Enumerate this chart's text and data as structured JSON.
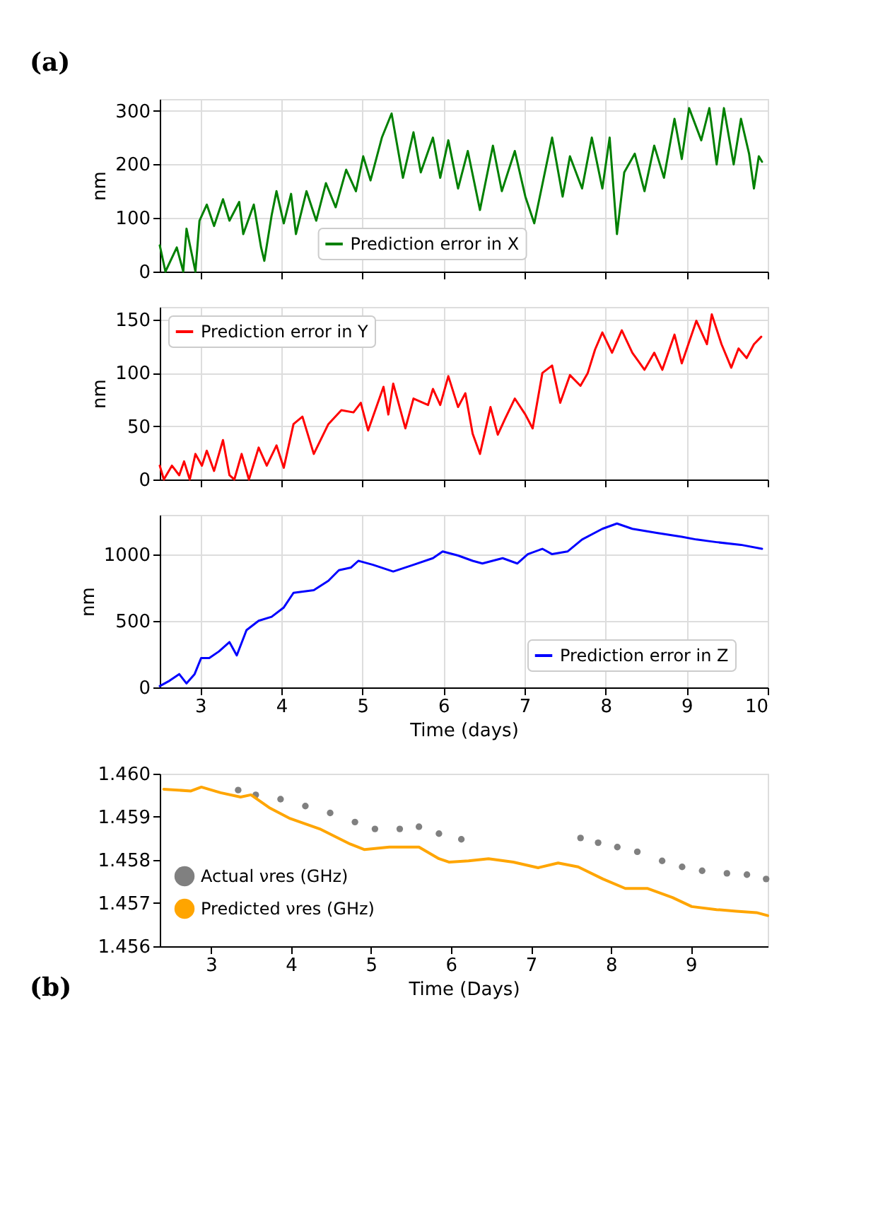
{
  "chart_data": [
    {
      "type": "line",
      "annotations": [
        "(a)"
      ],
      "ylabel": "nm",
      "xlim": [
        2.5,
        10
      ],
      "xticks": [
        3,
        4,
        5,
        6,
        7,
        8,
        9,
        10
      ],
      "ylim": [
        0,
        322
      ],
      "yticks": [
        0,
        100,
        200,
        300
      ],
      "tick_labels": "y",
      "grid": true,
      "legend": "bottom",
      "x": [
        2.5,
        2.57,
        2.71,
        2.79,
        2.83,
        2.94,
        2.99,
        3.08,
        3.17,
        3.28,
        3.36,
        3.48,
        3.53,
        3.66,
        3.75,
        3.79,
        3.88,
        3.94,
        4.03,
        4.12,
        4.18,
        4.31,
        4.43,
        4.55,
        4.67,
        4.8,
        4.92,
        5.01,
        5.1,
        5.24,
        5.36,
        5.5,
        5.63,
        5.72,
        5.87,
        5.96,
        6.06,
        6.18,
        6.3,
        6.45,
        6.61,
        6.72,
        6.88,
        7.01,
        7.12,
        7.34,
        7.47,
        7.56,
        7.71,
        7.83,
        7.96,
        8.05,
        8.14,
        8.23,
        8.36,
        8.48,
        8.6,
        8.72,
        8.85,
        8.94,
        9.03,
        9.18,
        9.28,
        9.37,
        9.46,
        9.58,
        9.67,
        9.77,
        9.83,
        9.89,
        9.93
      ],
      "series": [
        {
          "name": "Prediction error in X",
          "color": "#008000",
          "values": [
            49,
            0,
            45,
            0,
            80,
            0,
            95,
            125,
            85,
            135,
            95,
            130,
            70,
            125,
            45,
            20,
            105,
            150,
            90,
            145,
            70,
            150,
            95,
            165,
            120,
            190,
            150,
            215,
            170,
            250,
            295,
            175,
            260,
            185,
            250,
            175,
            245,
            155,
            225,
            115,
            235,
            150,
            225,
            140,
            90,
            250,
            140,
            215,
            155,
            250,
            155,
            250,
            70,
            185,
            220,
            150,
            235,
            175,
            285,
            210,
            305,
            245,
            305,
            200,
            305,
            200,
            285,
            220,
            155,
            215,
            205
          ]
        }
      ]
    },
    {
      "type": "line",
      "ylabel": "nm",
      "xlim": [
        2.5,
        10
      ],
      "xticks": [
        3,
        4,
        5,
        6,
        7,
        8,
        9,
        10
      ],
      "ylim": [
        0,
        162
      ],
      "yticks": [
        0,
        50,
        100,
        150
      ],
      "tick_labels": "y",
      "grid": true,
      "legend": "top left",
      "x": [
        2.5,
        2.55,
        2.65,
        2.74,
        2.8,
        2.87,
        2.94,
        3.02,
        3.08,
        3.17,
        3.28,
        3.36,
        3.42,
        3.51,
        3.6,
        3.72,
        3.82,
        3.94,
        4.03,
        4.15,
        4.26,
        4.4,
        4.58,
        4.74,
        4.89,
        4.98,
        5.07,
        5.26,
        5.32,
        5.38,
        5.53,
        5.63,
        5.81,
        5.87,
        5.96,
        6.06,
        6.18,
        6.27,
        6.36,
        6.45,
        6.58,
        6.67,
        6.76,
        6.88,
        7.01,
        7.1,
        7.22,
        7.34,
        7.44,
        7.56,
        7.69,
        7.78,
        7.87,
        7.96,
        8.08,
        8.2,
        8.33,
        8.48,
        8.6,
        8.7,
        8.85,
        8.94,
        9.12,
        9.25,
        9.31,
        9.43,
        9.55,
        9.64,
        9.74,
        9.83,
        9.92
      ],
      "series": [
        {
          "name": "Prediction error in Y",
          "color": "#ff0000",
          "values": [
            13,
            0,
            13,
            4,
            17,
            0,
            24,
            13,
            27,
            8,
            37,
            4,
            0,
            24,
            0,
            30,
            13,
            32,
            11,
            52,
            59,
            24,
            52,
            65,
            63,
            72,
            46,
            87,
            61,
            90,
            48,
            76,
            70,
            85,
            70,
            97,
            68,
            81,
            43,
            24,
            68,
            42,
            57,
            76,
            61,
            48,
            100,
            107,
            72,
            98,
            88,
            100,
            122,
            138,
            119,
            140,
            119,
            103,
            119,
            103,
            136,
            109,
            149,
            127,
            155,
            127,
            105,
            123,
            114,
            127,
            134
          ]
        }
      ]
    },
    {
      "type": "line",
      "ylabel": "nm",
      "xlabel": "Time (days)",
      "xlim": [
        2.5,
        10
      ],
      "xticks": [
        3,
        4,
        5,
        6,
        7,
        8,
        9,
        10
      ],
      "ylim": [
        0,
        1295
      ],
      "yticks": [
        0,
        500,
        1000
      ],
      "grid": true,
      "legend": "bottom right",
      "x": [
        2.5,
        2.62,
        2.74,
        2.83,
        2.93,
        3.01,
        3.11,
        3.23,
        3.36,
        3.45,
        3.57,
        3.72,
        3.88,
        4.03,
        4.15,
        4.4,
        4.58,
        4.71,
        4.86,
        4.95,
        5.13,
        5.38,
        5.63,
        5.87,
        5.99,
        6.18,
        6.36,
        6.48,
        6.73,
        6.91,
        7.04,
        7.22,
        7.34,
        7.53,
        7.71,
        7.96,
        8.14,
        8.33,
        8.63,
        8.94,
        9.12,
        9.37,
        9.67,
        9.93
      ],
      "series": [
        {
          "name": "Prediction error in Z",
          "color": "#0000ff",
          "values": [
            10,
            50,
            100,
            30,
            100,
            220,
            220,
            270,
            340,
            240,
            430,
            500,
            530,
            600,
            710,
            730,
            800,
            880,
            900,
            950,
            920,
            870,
            920,
            970,
            1020,
            990,
            950,
            930,
            970,
            930,
            1000,
            1040,
            1000,
            1020,
            1110,
            1190,
            1230,
            1190,
            1160,
            1130,
            1110,
            1090,
            1070,
            1040
          ]
        }
      ]
    },
    {
      "type": "line",
      "annotations": [
        "(b)"
      ],
      "xlabel": "Time (Days)",
      "xlim": [
        2.36,
        9.96
      ],
      "xticks": [
        3,
        4,
        5,
        6,
        7,
        8,
        9
      ],
      "ylim": [
        1.456,
        1.46
      ],
      "yticks": [
        {
          "value": 1.456,
          "label": "1.456"
        },
        {
          "value": 1.457,
          "label": "1.457"
        },
        {
          "value": 1.458,
          "label": "1.458"
        },
        {
          "value": 1.459,
          "label": "1.459"
        },
        {
          "value": 1.46,
          "label": "1.460"
        }
      ],
      "grid": false,
      "legend": "left",
      "series": [
        {
          "name": "Actual νres (GHz)",
          "type": "scatter",
          "color": "#808080",
          "x": [
            3.34,
            3.56,
            3.87,
            4.18,
            4.49,
            4.8,
            5.05,
            5.36,
            5.6,
            5.85,
            6.13,
            7.62,
            7.84,
            8.08,
            8.33,
            8.64,
            8.89,
            9.14,
            9.45,
            9.7,
            9.94
          ],
          "values": [
            1.45962,
            1.45951,
            1.45941,
            1.45925,
            1.45909,
            1.45888,
            1.45872,
            1.45872,
            1.45877,
            1.45861,
            1.45848,
            1.45851,
            1.4584,
            1.4583,
            1.45819,
            1.45798,
            1.45784,
            1.45775,
            1.45769,
            1.45766,
            1.45756
          ]
        },
        {
          "name": "Predicted νres (GHz)",
          "type": "line",
          "color": "#ffa500",
          "x": [
            2.41,
            2.75,
            2.88,
            3.12,
            3.37,
            3.5,
            3.74,
            3.99,
            4.36,
            4.74,
            4.92,
            5.23,
            5.6,
            5.85,
            5.98,
            6.22,
            6.47,
            6.78,
            7.09,
            7.34,
            7.59,
            7.9,
            8.18,
            8.46,
            8.77,
            9.01,
            9.32,
            9.57,
            9.82,
            9.96
          ],
          "values": [
            1.45964,
            1.4596,
            1.45969,
            1.45956,
            1.45946,
            1.45951,
            1.4592,
            1.45896,
            1.45872,
            1.45837,
            1.45824,
            1.4583,
            1.4583,
            1.45803,
            1.45795,
            1.45798,
            1.45803,
            1.45795,
            1.45782,
            1.45793,
            1.45784,
            1.45756,
            1.45734,
            1.45734,
            1.45713,
            1.45692,
            1.45685,
            1.45681,
            1.45678,
            1.45671
          ]
        }
      ]
    }
  ]
}
